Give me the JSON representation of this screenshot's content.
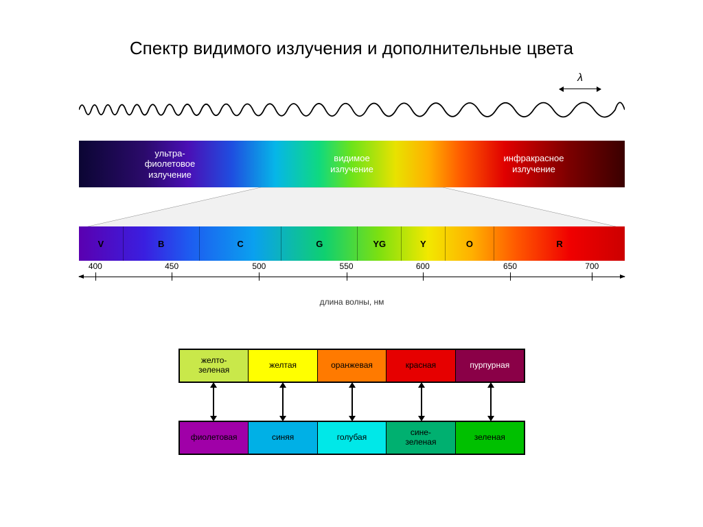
{
  "title": "Спектр видимого излучения и дополнительные цвета",
  "spectrum_bar": {
    "gradient_css": "linear-gradient(to right, #0b0633 0%, #2b0a6b 12%, #4a0fb5 20%, #1f4ee0 28%, #06b6e8 36%, #0fd980 44%, #6de31a 50%, #e8e200 58%, #ffb000 64%, #ff5a00 70%, #e00000 78%, #7a0000 90%, #3a0000 100%)",
    "labels": {
      "uv": "ультра-\nфиолетовое\nизлучение",
      "visible": "видимое\nизлучение",
      "ir": "инфракрасное\nизлучение"
    }
  },
  "detail": {
    "gradient_css": "linear-gradient(to right, #5a00b0 0%, #3a1fe0 12%, #1e5af0 20%, #0aa0ef 32%, #0fd070 45%, #7de010 55%, #f2e800 64%, #ffb000 72%, #ff5a00 80%, #f00000 90%, #cc0000 100%)",
    "cells": [
      {
        "label": "V",
        "pct": 8
      },
      {
        "label": "B",
        "pct": 14
      },
      {
        "label": "C",
        "pct": 15
      },
      {
        "label": "G",
        "pct": 14
      },
      {
        "label": "YG",
        "pct": 8
      },
      {
        "label": "Y",
        "pct": 8
      },
      {
        "label": "O",
        "pct": 9
      },
      {
        "label": "R",
        "pct": 24
      }
    ]
  },
  "axis": {
    "title": "длина волны, нм",
    "ticks": [
      {
        "value": "400",
        "pct": 3
      },
      {
        "value": "450",
        "pct": 17
      },
      {
        "value": "500",
        "pct": 33
      },
      {
        "value": "550",
        "pct": 49
      },
      {
        "value": "600",
        "pct": 63
      },
      {
        "value": "650",
        "pct": 79
      },
      {
        "value": "700",
        "pct": 94
      }
    ]
  },
  "complementary": {
    "top": [
      {
        "label": "желто-\nзеленая",
        "bg": "#c9e84a",
        "fg": "#000000"
      },
      {
        "label": "желтая",
        "bg": "#ffff00",
        "fg": "#000000"
      },
      {
        "label": "оранжевая",
        "bg": "#ff7a00",
        "fg": "#000000"
      },
      {
        "label": "красная",
        "bg": "#e60000",
        "fg": "#000000"
      },
      {
        "label": "пурпурная",
        "bg": "#8a0047",
        "fg": "#ffffff"
      }
    ],
    "bottom": [
      {
        "label": "фиолетовая",
        "bg": "#a000a8",
        "fg": "#000000"
      },
      {
        "label": "синяя",
        "bg": "#00b0e6",
        "fg": "#000000"
      },
      {
        "label": "голубая",
        "bg": "#00e8e8",
        "fg": "#000000"
      },
      {
        "label": "сине-\nзеленая",
        "bg": "#00b070",
        "fg": "#000000"
      },
      {
        "label": "зеленая",
        "bg": "#00c000",
        "fg": "#000000"
      }
    ],
    "arrow_positions_pct": [
      10,
      30,
      50,
      70,
      90
    ]
  },
  "wave": {
    "lambda_symbol": "λ",
    "stroke": "#000000"
  }
}
